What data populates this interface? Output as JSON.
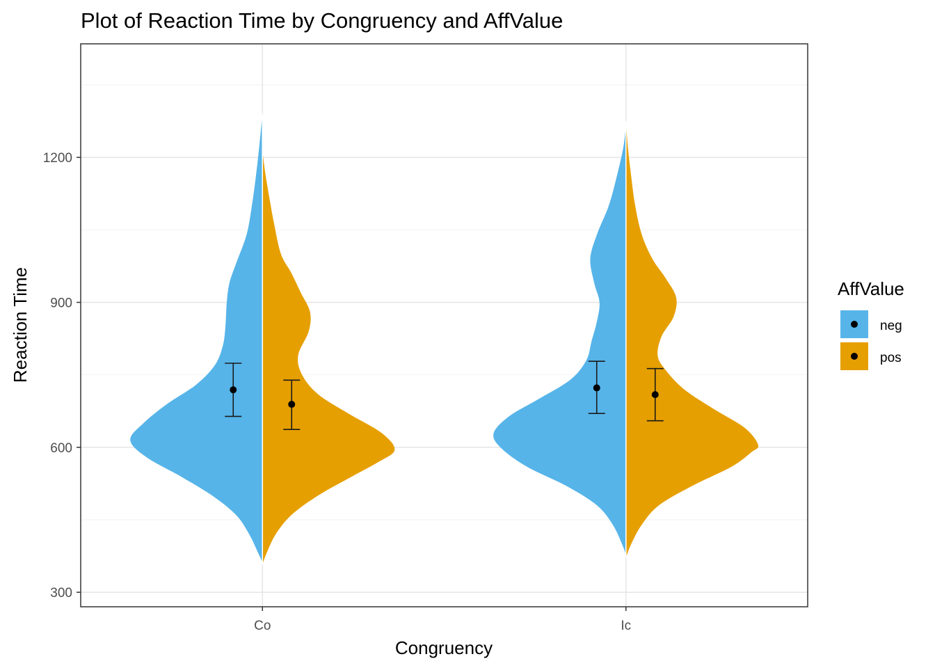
{
  "chart_data": {
    "type": "violin",
    "title": "Plot of Reaction Time by Congruency and AffValue",
    "xlabel": "Congruency",
    "ylabel": "Reaction Time",
    "categories": [
      "Co",
      "Ic"
    ],
    "yticks": [
      300,
      600,
      900,
      1200
    ],
    "ylim": [
      270,
      1435
    ],
    "grid": true,
    "legend": {
      "title": "AffValue",
      "position": "right",
      "entries": [
        {
          "name": "neg",
          "color": "#56B4E9"
        },
        {
          "name": "pos",
          "color": "#E69F00"
        }
      ]
    },
    "series": [
      {
        "name": "neg",
        "color": "#56B4E9",
        "side": "left",
        "violins": [
          {
            "category": "Co",
            "profile": [
              [
                362,
                0.0
              ],
              [
                380,
                0.03
              ],
              [
                420,
                0.1
              ],
              [
                460,
                0.2
              ],
              [
                500,
                0.38
              ],
              [
                540,
                0.62
              ],
              [
                580,
                0.88
              ],
              [
                615,
                1.0
              ],
              [
                650,
                0.9
              ],
              [
                690,
                0.72
              ],
              [
                730,
                0.5
              ],
              [
                770,
                0.36
              ],
              [
                810,
                0.3
              ],
              [
                850,
                0.28
              ],
              [
                900,
                0.27
              ],
              [
                940,
                0.25
              ],
              [
                980,
                0.2
              ],
              [
                1040,
                0.12
              ],
              [
                1100,
                0.08
              ],
              [
                1160,
                0.05
              ],
              [
                1220,
                0.025
              ],
              [
                1290,
                0.0
              ]
            ],
            "mean": 719,
            "ci_low": 664,
            "ci_high": 774
          },
          {
            "category": "Ic",
            "profile": [
              [
                378,
                0.0
              ],
              [
                400,
                0.03
              ],
              [
                440,
                0.1
              ],
              [
                480,
                0.22
              ],
              [
                520,
                0.45
              ],
              [
                560,
                0.75
              ],
              [
                600,
                0.95
              ],
              [
                630,
                1.0
              ],
              [
                665,
                0.88
              ],
              [
                700,
                0.66
              ],
              [
                740,
                0.42
              ],
              [
                780,
                0.3
              ],
              [
                820,
                0.26
              ],
              [
                860,
                0.22
              ],
              [
                900,
                0.2
              ],
              [
                940,
                0.24
              ],
              [
                990,
                0.27
              ],
              [
                1040,
                0.22
              ],
              [
                1100,
                0.13
              ],
              [
                1160,
                0.07
              ],
              [
                1220,
                0.02
              ],
              [
                1265,
                0.0
              ]
            ],
            "mean": 723,
            "ci_low": 670,
            "ci_high": 778
          }
        ]
      },
      {
        "name": "pos",
        "color": "#E69F00",
        "side": "right",
        "violins": [
          {
            "category": "Co",
            "profile": [
              [
                358,
                0.0
              ],
              [
                380,
                0.03
              ],
              [
                420,
                0.1
              ],
              [
                460,
                0.22
              ],
              [
                500,
                0.42
              ],
              [
                540,
                0.68
              ],
              [
                570,
                0.88
              ],
              [
                595,
                1.0
              ],
              [
                630,
                0.9
              ],
              [
                670,
                0.65
              ],
              [
                710,
                0.42
              ],
              [
                750,
                0.3
              ],
              [
                790,
                0.27
              ],
              [
                840,
                0.35
              ],
              [
                880,
                0.36
              ],
              [
                920,
                0.29
              ],
              [
                960,
                0.22
              ],
              [
                1000,
                0.14
              ],
              [
                1060,
                0.09
              ],
              [
                1120,
                0.05
              ],
              [
                1170,
                0.02
              ],
              [
                1215,
                0.0
              ]
            ],
            "mean": 689,
            "ci_low": 637,
            "ci_high": 739
          },
          {
            "category": "Ic",
            "profile": [
              [
                372,
                0.0
              ],
              [
                400,
                0.04
              ],
              [
                440,
                0.12
              ],
              [
                480,
                0.25
              ],
              [
                520,
                0.5
              ],
              [
                560,
                0.8
              ],
              [
                590,
                0.95
              ],
              [
                605,
                1.0
              ],
              [
                640,
                0.9
              ],
              [
                680,
                0.66
              ],
              [
                720,
                0.44
              ],
              [
                760,
                0.3
              ],
              [
                790,
                0.24
              ],
              [
                830,
                0.27
              ],
              [
                870,
                0.36
              ],
              [
                910,
                0.38
              ],
              [
                950,
                0.3
              ],
              [
                990,
                0.2
              ],
              [
                1040,
                0.12
              ],
              [
                1100,
                0.07
              ],
              [
                1160,
                0.04
              ],
              [
                1220,
                0.015
              ],
              [
                1275,
                0.0
              ]
            ],
            "mean": 709,
            "ci_low": 655,
            "ci_high": 763
          }
        ]
      }
    ]
  }
}
